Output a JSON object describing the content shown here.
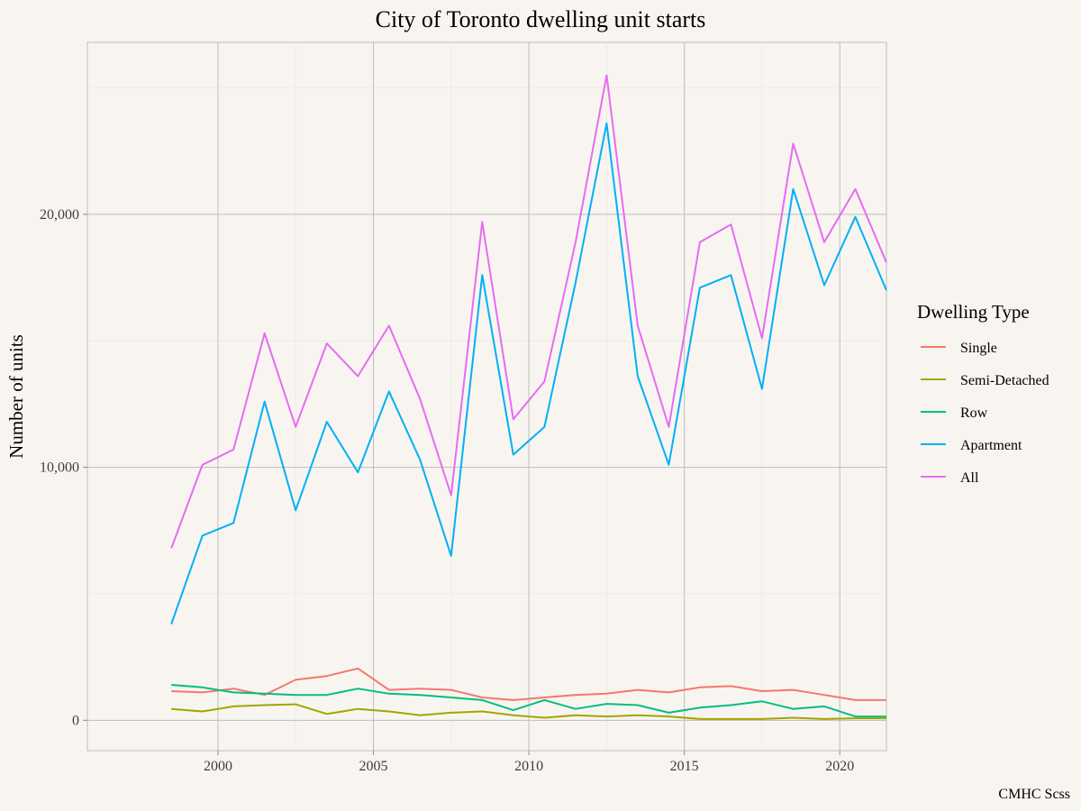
{
  "chart_data": {
    "type": "line",
    "title": "City of Toronto dwelling unit starts",
    "xlabel": "",
    "ylabel": "Number of units",
    "caption": "CMHC Scss",
    "xlim": [
      1995.8,
      2021.5
    ],
    "ylim": [
      -1200,
      26800
    ],
    "x_ticks": [
      2000,
      2005,
      2010,
      2015,
      2020
    ],
    "x_tick_labels": [
      "2000",
      "2005",
      "2010",
      "2015",
      "2020"
    ],
    "y_ticks": [
      0,
      10000,
      20000
    ],
    "y_tick_labels": [
      "0",
      "10,000",
      "20,000"
    ],
    "grid": true,
    "legend": {
      "title": "Dwelling Type",
      "position": "right"
    },
    "x": [
      1998.5,
      1999.5,
      2000.5,
      2001.5,
      2002.5,
      2003.5,
      2004.5,
      2005.5,
      2006.5,
      2007.5,
      2008.5,
      2009.5,
      2010.5,
      2011.5,
      2012.5,
      2013.5,
      2014.5,
      2015.5,
      2016.5,
      2017.5,
      2018.5,
      2019.5,
      2020.5,
      2021.5
    ],
    "series": [
      {
        "name": "Single",
        "color": "#F8766D",
        "values": [
          1150,
          1100,
          1250,
          1000,
          1600,
          1750,
          2050,
          1200,
          1250,
          1200,
          900,
          800,
          900,
          1000,
          1050,
          1200,
          1100,
          1300,
          1350,
          1150,
          1200,
          1000,
          800,
          800
        ]
      },
      {
        "name": "Semi-Detached",
        "color": "#A3A500",
        "values": [
          450,
          350,
          550,
          600,
          630,
          250,
          450,
          350,
          200,
          300,
          350,
          200,
          100,
          200,
          150,
          200,
          150,
          50,
          50,
          50,
          100,
          50,
          80,
          80
        ]
      },
      {
        "name": "Row",
        "color": "#00BF7D",
        "values": [
          1400,
          1300,
          1100,
          1050,
          1000,
          1000,
          1250,
          1050,
          1000,
          900,
          800,
          400,
          800,
          450,
          650,
          600,
          300,
          500,
          600,
          750,
          450,
          550,
          150,
          150
        ]
      },
      {
        "name": "Apartment",
        "color": "#00B0F6",
        "values": [
          3800,
          7300,
          7800,
          12600,
          8300,
          11800,
          9800,
          13000,
          10300,
          6500,
          17600,
          10500,
          11600,
          17300,
          23600,
          13600,
          10100,
          17100,
          17600,
          13100,
          21000,
          17200,
          19900,
          17000
        ]
      },
      {
        "name": "All",
        "color": "#E76BF3",
        "values": [
          6800,
          10100,
          10700,
          15300,
          11600,
          14900,
          13600,
          15600,
          12700,
          8900,
          19700,
          11900,
          13400,
          18900,
          25500,
          15600,
          11600,
          18900,
          19600,
          15100,
          22800,
          18900,
          21000,
          18100
        ]
      }
    ]
  }
}
